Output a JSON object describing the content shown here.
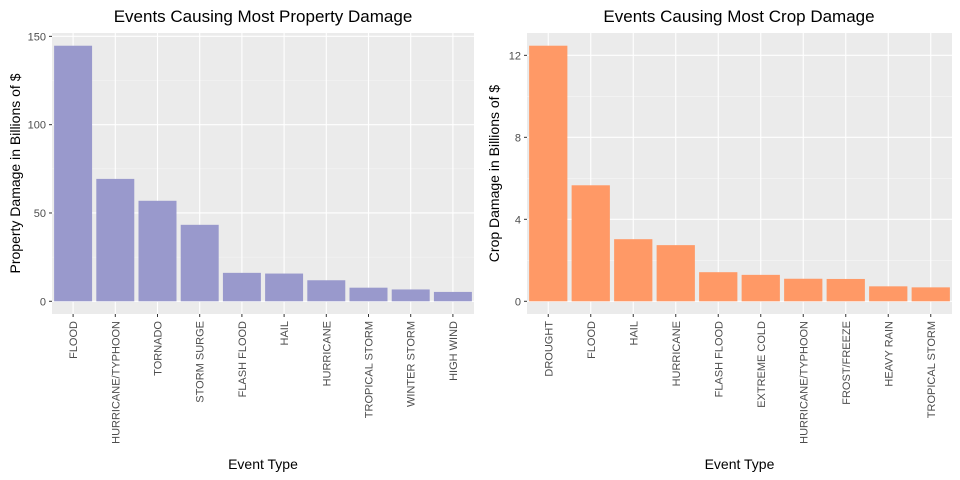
{
  "chart_data": [
    {
      "type": "bar",
      "title": "Events Causing Most Property Damage",
      "xlabel": "Event Type",
      "ylabel": "Property Damage in Billions of $",
      "categories": [
        "FLOOD",
        "HURRICANE/TYPHOON",
        "TORNADO",
        "STORM SURGE",
        "FLASH FLOOD",
        "HAIL",
        "HURRICANE",
        "TROPICAL STORM",
        "WINTER STORM",
        "HIGH WIND"
      ],
      "values": [
        144.7,
        69.3,
        56.9,
        43.3,
        16.1,
        15.7,
        11.9,
        7.7,
        6.7,
        5.3
      ],
      "ylim": [
        -7.2,
        151.9
      ],
      "yticks": [
        0,
        50,
        100,
        150
      ],
      "color": "#9999CC",
      "panel_bg": "#EBEBEB",
      "grid": true,
      "legend": "none"
    },
    {
      "type": "bar",
      "title": "Events Causing Most Crop Damage",
      "xlabel": "Event Type",
      "ylabel": "Crop Damage in Billions of $",
      "categories": [
        "DROUGHT",
        "FLOOD",
        "HAIL",
        "HURRICANE",
        "FLASH FLOOD",
        "EXTREME COLD",
        "HURRICANE/TYPHOON",
        "FROST/FREEZE",
        "HEAVY RAIN",
        "TROPICAL STORM"
      ],
      "values": [
        12.47,
        5.66,
        3.03,
        2.74,
        1.42,
        1.29,
        1.1,
        1.09,
        0.73,
        0.68
      ],
      "ylim": [
        -0.62,
        13.09
      ],
      "yticks": [
        0,
        4,
        8,
        12
      ],
      "color": "#FF9966",
      "panel_bg": "#EBEBEB",
      "grid": true,
      "legend": "none"
    }
  ]
}
